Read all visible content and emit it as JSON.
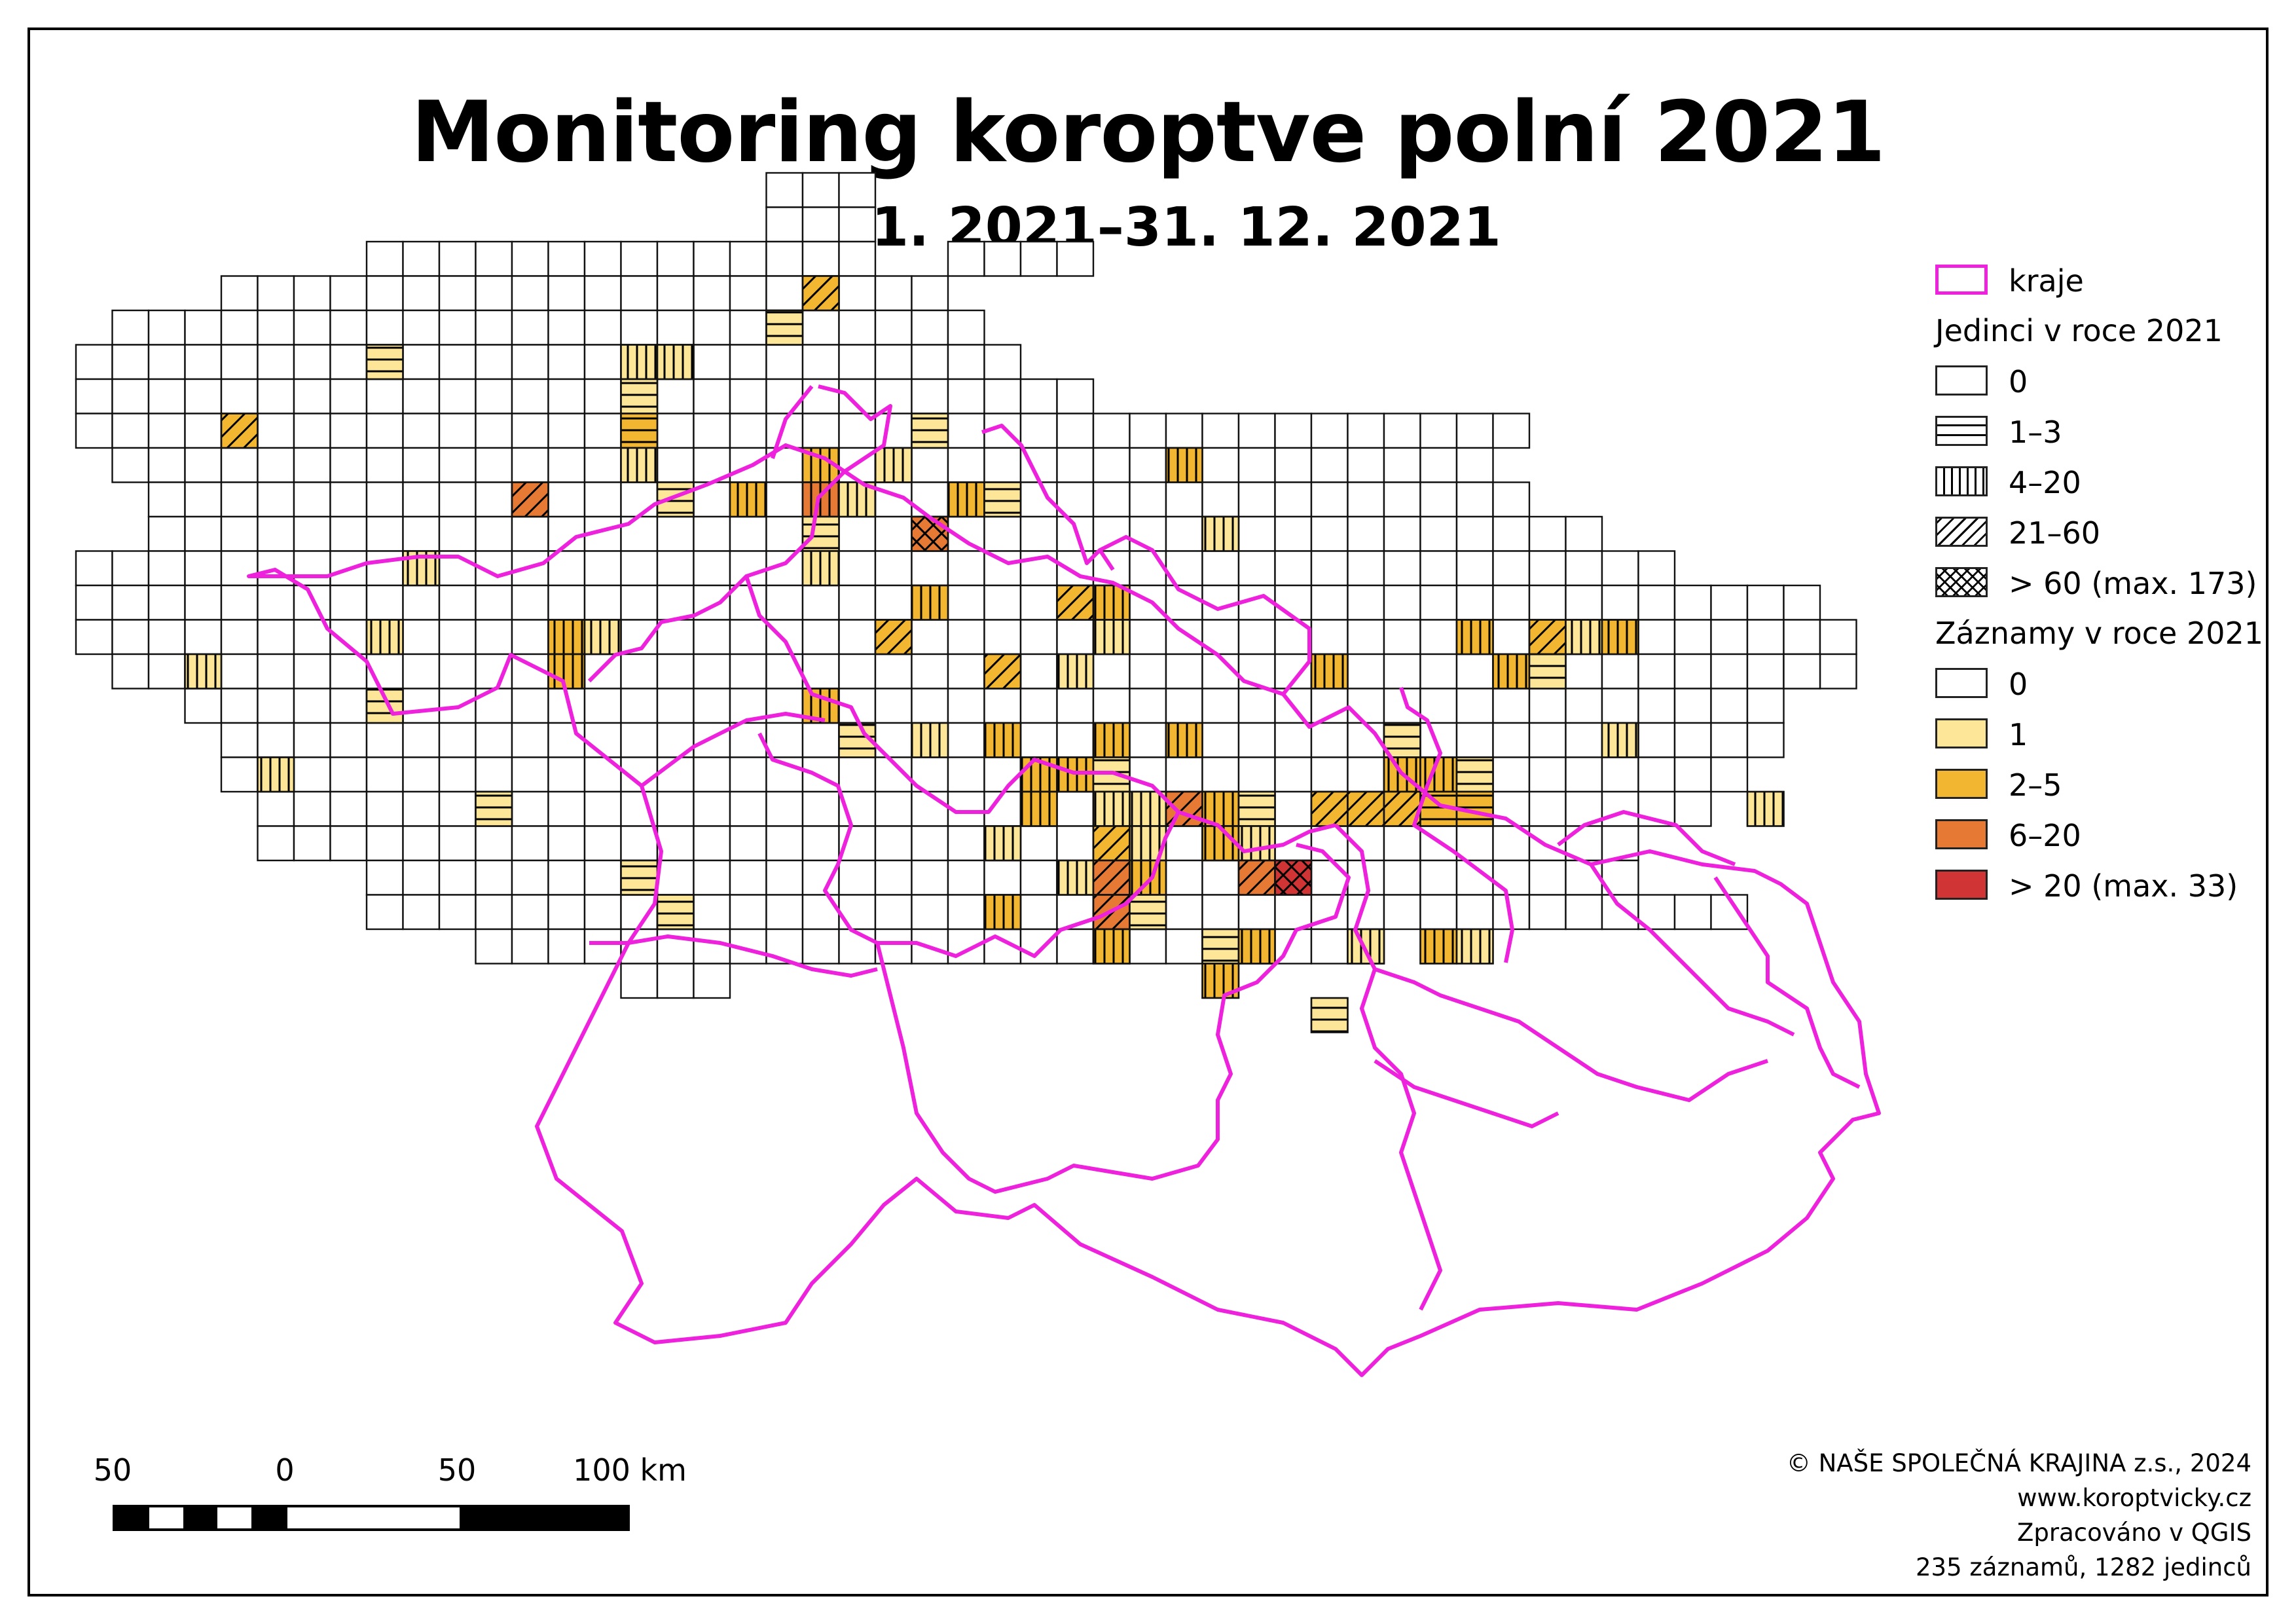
{
  "title": "Monitoring koroptve polní 2021",
  "subtitle": "1. 1. 2021–31. 12. 2021",
  "legend": {
    "regions_label": "kraje",
    "individuals_heading": "Jedinci v roce 2021",
    "individuals_classes": [
      "0",
      "1–3",
      "4–20",
      "21–60",
      "> 60 (max. 173)"
    ],
    "records_heading": "Záznamy v roce 2021",
    "records_classes": [
      "0",
      "1",
      "2–5",
      "6–20",
      "> 20 (max. 33)"
    ]
  },
  "colors": {
    "regions": "#ee22dd",
    "records_0": "#ffffff",
    "records_1": "#fde697",
    "records_2_5": "#f2b631",
    "records_6_20": "#e67a35",
    "records_20plus": "#d13434"
  },
  "scale_bar": {
    "labels": [
      "50",
      "0",
      "50",
      "100 km"
    ]
  },
  "credits": [
    "© NAŠE SPOLEČNÁ KRAJINA z.s., 2024",
    "www.koroptvicky.cz",
    "Zpracováno v QGIS",
    "235 záznamů, 1282 jedinců"
  ]
}
